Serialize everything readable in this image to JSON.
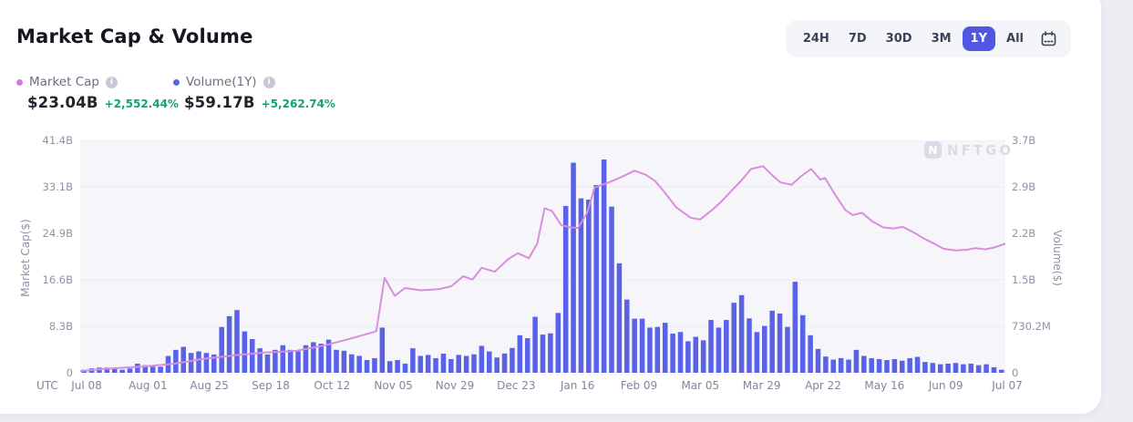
{
  "header": {
    "title": "Market Cap & Volume"
  },
  "legend": [
    {
      "label": "Market Cap",
      "dot_color": "#D678E2",
      "value": "$23.04B",
      "change": "+2,552.44%"
    },
    {
      "label": "Volume(1Y)",
      "dot_color": "#5A62E8",
      "value": "$59.17B",
      "change": "+5,262.74%"
    }
  ],
  "range_selector": {
    "options": [
      "24H",
      "7D",
      "30D",
      "3M",
      "1Y",
      "All"
    ],
    "active": "1Y"
  },
  "watermark": {
    "logo_letter": "N",
    "text": "NFTGO"
  },
  "colors": {
    "page_bg": "#EDEEF3",
    "card_bg": "#FFFFFF",
    "plot_bg": "#F6F6FA",
    "grid": "#EAEBF2",
    "axis_text": "#8F93A6",
    "bar": "#5A62E8",
    "line": "#D78FDC",
    "positive": "#0FA474",
    "active_range_bg": "#5156E3",
    "range_group_bg": "#F4F5F9",
    "axis_line": "#E0E2EA",
    "tick_mark": "#C9CCD8"
  },
  "chart_data": {
    "type": "bar+line",
    "title": "Market Cap & Volume",
    "grid": "horizontal",
    "legend_position": "top-left",
    "x_axis": {
      "utc_label": "UTC",
      "tick_labels": [
        "Jul 08",
        "Aug 01",
        "Aug 25",
        "Sep 18",
        "Oct 12",
        "Nov 05",
        "Nov 29",
        "Dec 23",
        "Jan 16",
        "Feb 09",
        "Mar 05",
        "Mar 29",
        "Apr 22",
        "May 16",
        "Jun 09",
        "Jul 07"
      ]
    },
    "left_axis": {
      "label": "Market Cap($)",
      "tick_labels": [
        "41.4B",
        "33.1B",
        "24.9B",
        "16.6B",
        "8.3B",
        "0"
      ],
      "max_value_billion": 41.4
    },
    "right_axis": {
      "label": "Volume($)",
      "tick_labels": [
        "3.7B",
        "2.9B",
        "2.2B",
        "1.5B",
        "730.2M",
        "0"
      ],
      "max_value_million": 3651
    },
    "series": [
      {
        "name": "Volume",
        "type": "bar",
        "color": "#5A62E8",
        "unit": "million_usd",
        "values": [
          48,
          68,
          82,
          82,
          68,
          48,
          68,
          144,
          120,
          96,
          96,
          264,
          360,
          408,
          312,
          336,
          312,
          288,
          720,
          890,
          985,
          650,
          530,
          385,
          288,
          360,
          433,
          360,
          336,
          433,
          480,
          457,
          520,
          360,
          346,
          290,
          265,
          200,
          230,
          710,
          183,
          200,
          144,
          385,
          265,
          280,
          230,
          300,
          215,
          280,
          265,
          290,
          423,
          335,
          240,
          303,
          390,
          590,
          543,
          880,
          600,
          620,
          940,
          2620,
          3300,
          2740,
          2720,
          2950,
          3350,
          2610,
          1720,
          1150,
          850,
          850,
          710,
          720,
          785,
          615,
          640,
          495,
          565,
          510,
          830,
          710,
          830,
          1100,
          1220,
          855,
          640,
          735,
          975,
          930,
          720,
          1430,
          905,
          590,
          375,
          255,
          207,
          231,
          207,
          360,
          265,
          230,
          215,
          200,
          215,
          190,
          230,
          250,
          170,
          154,
          134,
          144,
          154,
          134,
          144,
          120,
          134,
          87,
          48
        ]
      },
      {
        "name": "Market Cap",
        "type": "line",
        "color": "#D78FDC",
        "unit": "billion_usd",
        "points": [
          [
            0.0,
            0.33
          ],
          [
            0.035,
            0.8
          ],
          [
            0.067,
            1.1
          ],
          [
            0.101,
            1.6
          ],
          [
            0.134,
            2.5
          ],
          [
            0.166,
            3.1
          ],
          [
            0.2,
            3.6
          ],
          [
            0.233,
            3.9
          ],
          [
            0.265,
            4.9
          ],
          [
            0.299,
            6.4
          ],
          [
            0.32,
            7.4
          ],
          [
            0.329,
            16.9
          ],
          [
            0.34,
            13.7
          ],
          [
            0.351,
            15.1
          ],
          [
            0.368,
            14.7
          ],
          [
            0.388,
            14.9
          ],
          [
            0.401,
            15.4
          ],
          [
            0.414,
            17.2
          ],
          [
            0.424,
            16.6
          ],
          [
            0.434,
            18.7
          ],
          [
            0.448,
            18.0
          ],
          [
            0.463,
            20.3
          ],
          [
            0.473,
            21.3
          ],
          [
            0.485,
            20.4
          ],
          [
            0.494,
            23.0
          ],
          [
            0.502,
            29.3
          ],
          [
            0.51,
            28.8
          ],
          [
            0.52,
            26.3
          ],
          [
            0.53,
            25.9
          ],
          [
            0.538,
            25.8
          ],
          [
            0.548,
            28.5
          ],
          [
            0.556,
            33.0
          ],
          [
            0.571,
            33.9
          ],
          [
            0.584,
            34.8
          ],
          [
            0.599,
            36.0
          ],
          [
            0.611,
            35.3
          ],
          [
            0.621,
            34.2
          ],
          [
            0.629,
            32.7
          ],
          [
            0.644,
            29.5
          ],
          [
            0.66,
            27.6
          ],
          [
            0.67,
            27.3
          ],
          [
            0.683,
            29.0
          ],
          [
            0.693,
            30.5
          ],
          [
            0.705,
            32.6
          ],
          [
            0.716,
            34.5
          ],
          [
            0.725,
            36.3
          ],
          [
            0.738,
            36.8
          ],
          [
            0.748,
            35.2
          ],
          [
            0.757,
            33.9
          ],
          [
            0.769,
            33.5
          ],
          [
            0.779,
            35.0
          ],
          [
            0.79,
            36.3
          ],
          [
            0.8,
            34.4
          ],
          [
            0.805,
            34.7
          ],
          [
            0.815,
            32.0
          ],
          [
            0.827,
            29.0
          ],
          [
            0.835,
            28.1
          ],
          [
            0.845,
            28.5
          ],
          [
            0.856,
            27.0
          ],
          [
            0.868,
            25.9
          ],
          [
            0.879,
            25.7
          ],
          [
            0.889,
            26.0
          ],
          [
            0.901,
            25.0
          ],
          [
            0.911,
            24.0
          ],
          [
            0.923,
            23.0
          ],
          [
            0.933,
            22.1
          ],
          [
            0.946,
            21.8
          ],
          [
            0.958,
            21.9
          ],
          [
            0.967,
            22.2
          ],
          [
            0.978,
            22.0
          ],
          [
            0.988,
            22.3
          ],
          [
            1.0,
            23.0
          ]
        ]
      }
    ]
  }
}
